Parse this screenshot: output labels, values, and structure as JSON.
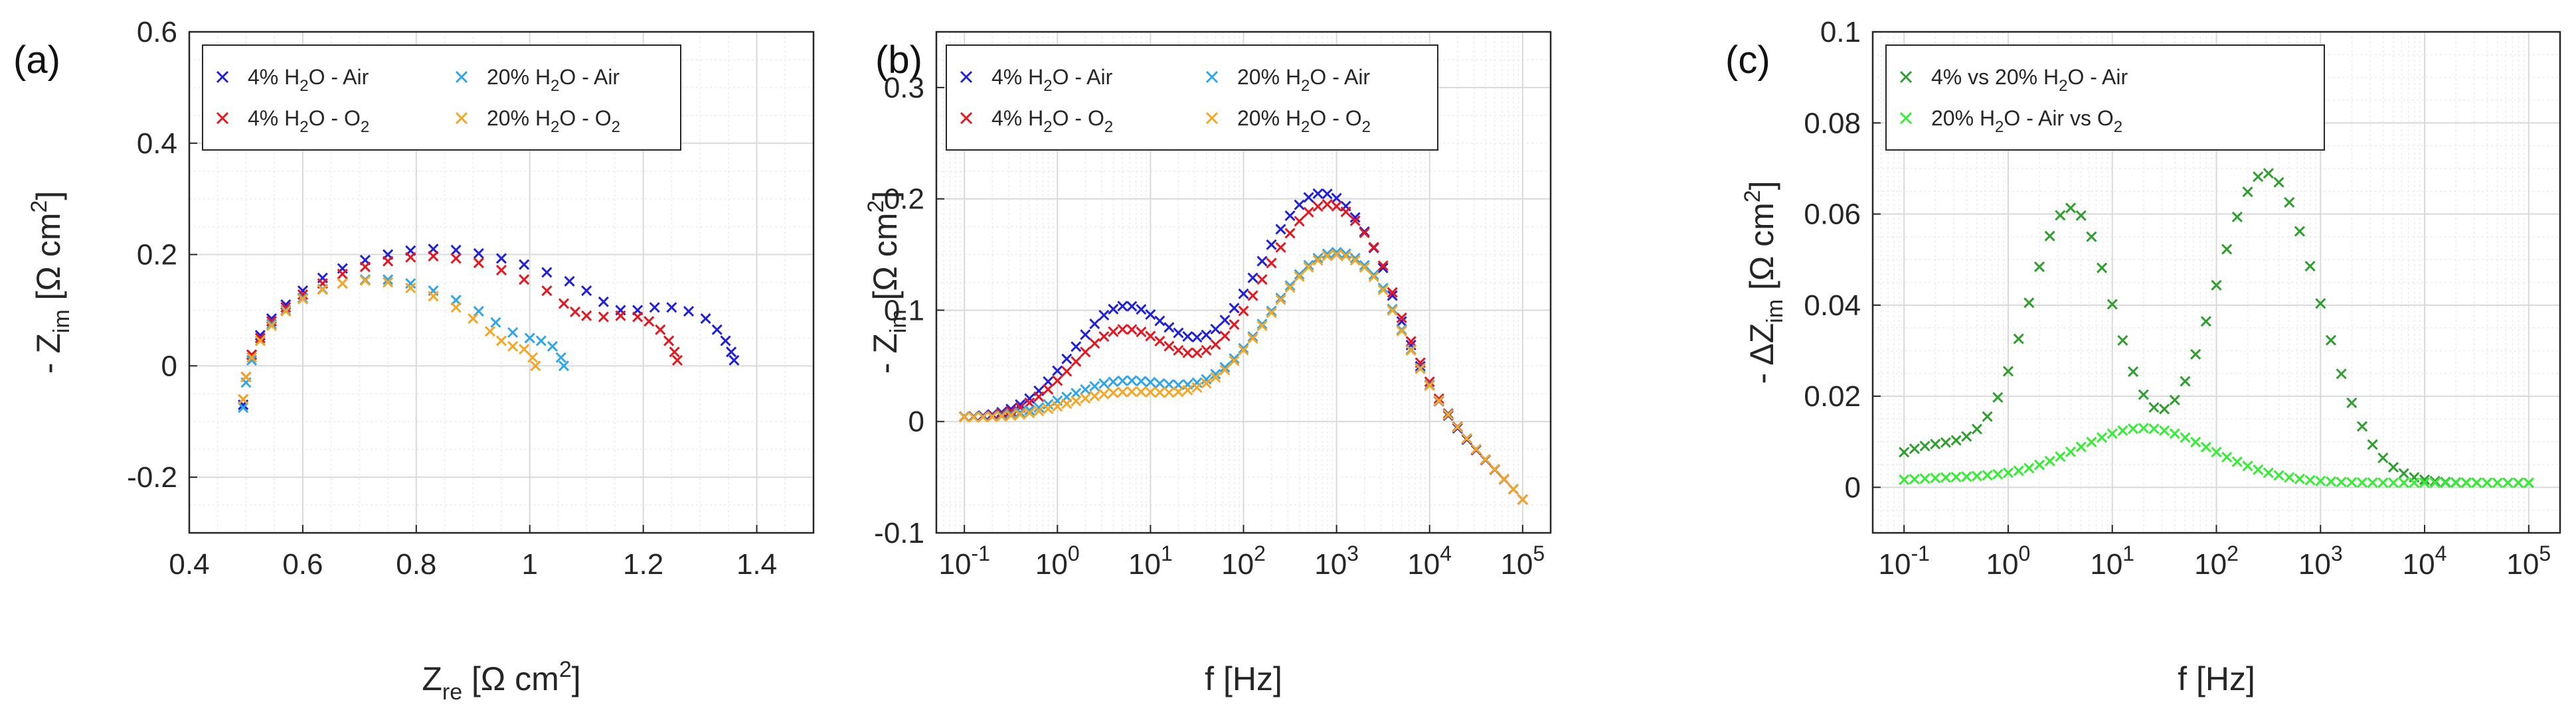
{
  "colors": {
    "blue": "#1f1fdc",
    "red": "#e8141e",
    "light_blue": "#2ea6e8",
    "orange": "#f5a623",
    "dark_green": "#2e9e2e",
    "bright_green": "#33ee33",
    "grid": "#d9d9d9",
    "axis": "#262626"
  },
  "chart_data": [
    {
      "id": "a",
      "panel_label": "(a)",
      "type": "scatter",
      "marker": "x",
      "xscale": "linear",
      "xlim": [
        0.4,
        1.5
      ],
      "ylim": [
        -0.3,
        0.6
      ],
      "xticks": [
        0.4,
        0.6,
        0.8,
        1.0,
        1.2,
        1.4
      ],
      "xtick_labels": [
        "0.4",
        "0.6",
        "0.8",
        "1",
        "1.2",
        "1.4"
      ],
      "yticks": [
        -0.2,
        0,
        0.2,
        0.4,
        0.6
      ],
      "ytick_labels": [
        "-0.2",
        "0",
        "0.2",
        "0.4",
        "0.6"
      ],
      "xlabel": {
        "base": "Z",
        "sub": "re",
        "unit": " [Ω cm",
        "sup": "2",
        "close": "]"
      },
      "ylabel": {
        "prefix": "- Z",
        "sub": "im",
        "unit": " [Ω cm",
        "sup": "2",
        "close": "]"
      },
      "legend_position": "top-left",
      "legend_columns": 2,
      "series": [
        {
          "name": "4% H2O - Air",
          "color": "blue",
          "points": [
            [
              0.495,
              -0.07
            ],
            [
              0.5,
              -0.02
            ],
            [
              0.51,
              0.02
            ],
            [
              0.525,
              0.055
            ],
            [
              0.545,
              0.085
            ],
            [
              0.57,
              0.11
            ],
            [
              0.6,
              0.135
            ],
            [
              0.635,
              0.158
            ],
            [
              0.67,
              0.175
            ],
            [
              0.71,
              0.19
            ],
            [
              0.75,
              0.2
            ],
            [
              0.79,
              0.207
            ],
            [
              0.83,
              0.21
            ],
            [
              0.87,
              0.208
            ],
            [
              0.91,
              0.202
            ],
            [
              0.95,
              0.193
            ],
            [
              0.99,
              0.182
            ],
            [
              1.03,
              0.168
            ],
            [
              1.07,
              0.152
            ],
            [
              1.1,
              0.135
            ],
            [
              1.13,
              0.115
            ],
            [
              1.16,
              0.1
            ],
            [
              1.19,
              0.1
            ],
            [
              1.22,
              0.105
            ],
            [
              1.25,
              0.105
            ],
            [
              1.28,
              0.098
            ],
            [
              1.31,
              0.085
            ],
            [
              1.33,
              0.065
            ],
            [
              1.345,
              0.045
            ],
            [
              1.355,
              0.025
            ],
            [
              1.36,
              0.01
            ]
          ]
        },
        {
          "name": "4% H2O - O2",
          "color": "red",
          "points": [
            [
              0.495,
              -0.06
            ],
            [
              0.5,
              -0.02
            ],
            [
              0.51,
              0.02
            ],
            [
              0.525,
              0.05
            ],
            [
              0.545,
              0.08
            ],
            [
              0.57,
              0.105
            ],
            [
              0.6,
              0.128
            ],
            [
              0.635,
              0.148
            ],
            [
              0.67,
              0.165
            ],
            [
              0.71,
              0.178
            ],
            [
              0.75,
              0.188
            ],
            [
              0.79,
              0.195
            ],
            [
              0.83,
              0.197
            ],
            [
              0.87,
              0.193
            ],
            [
              0.91,
              0.185
            ],
            [
              0.95,
              0.172
            ],
            [
              0.99,
              0.155
            ],
            [
              1.03,
              0.135
            ],
            [
              1.06,
              0.112
            ],
            [
              1.08,
              0.097
            ],
            [
              1.1,
              0.09
            ],
            [
              1.13,
              0.088
            ],
            [
              1.16,
              0.09
            ],
            [
              1.19,
              0.088
            ],
            [
              1.21,
              0.08
            ],
            [
              1.23,
              0.065
            ],
            [
              1.245,
              0.045
            ],
            [
              1.255,
              0.025
            ],
            [
              1.26,
              0.01
            ]
          ]
        },
        {
          "name": "20% H2O - Air",
          "color": "light_blue",
          "points": [
            [
              0.495,
              -0.075
            ],
            [
              0.5,
              -0.03
            ],
            [
              0.51,
              0.01
            ],
            [
              0.525,
              0.045
            ],
            [
              0.545,
              0.075
            ],
            [
              0.57,
              0.1
            ],
            [
              0.6,
              0.122
            ],
            [
              0.635,
              0.138
            ],
            [
              0.67,
              0.148
            ],
            [
              0.71,
              0.155
            ],
            [
              0.75,
              0.155
            ],
            [
              0.79,
              0.148
            ],
            [
              0.83,
              0.135
            ],
            [
              0.87,
              0.118
            ],
            [
              0.91,
              0.098
            ],
            [
              0.94,
              0.078
            ],
            [
              0.97,
              0.06
            ],
            [
              1.0,
              0.05
            ],
            [
              1.02,
              0.045
            ],
            [
              1.04,
              0.035
            ],
            [
              1.055,
              0.015
            ],
            [
              1.06,
              0.0
            ]
          ]
        },
        {
          "name": "20% H2O - O2",
          "color": "orange",
          "points": [
            [
              0.495,
              -0.06
            ],
            [
              0.5,
              -0.02
            ],
            [
              0.51,
              0.015
            ],
            [
              0.525,
              0.045
            ],
            [
              0.545,
              0.072
            ],
            [
              0.57,
              0.098
            ],
            [
              0.6,
              0.12
            ],
            [
              0.635,
              0.137
            ],
            [
              0.67,
              0.148
            ],
            [
              0.71,
              0.153
            ],
            [
              0.75,
              0.15
            ],
            [
              0.79,
              0.14
            ],
            [
              0.83,
              0.125
            ],
            [
              0.87,
              0.105
            ],
            [
              0.9,
              0.085
            ],
            [
              0.93,
              0.062
            ],
            [
              0.95,
              0.045
            ],
            [
              0.97,
              0.035
            ],
            [
              0.99,
              0.03
            ],
            [
              1.005,
              0.015
            ],
            [
              1.01,
              0.0
            ]
          ]
        }
      ]
    },
    {
      "id": "b",
      "panel_label": "(b)",
      "type": "scatter",
      "marker": "x",
      "xscale": "log",
      "xlim": [
        0.05,
        200000
      ],
      "ylim": [
        -0.1,
        0.35
      ],
      "xticks": [
        0.1,
        1,
        10,
        100,
        1000,
        10000,
        100000
      ],
      "xtick_labels": [
        [
          "10",
          "-1"
        ],
        [
          "10",
          "0"
        ],
        [
          "10",
          "1"
        ],
        [
          "10",
          "2"
        ],
        [
          "10",
          "3"
        ],
        [
          "10",
          "4"
        ],
        [
          "10",
          "5"
        ]
      ],
      "yticks": [
        -0.1,
        0,
        0.1,
        0.2,
        0.3
      ],
      "ytick_labels": [
        "-0.1",
        "0",
        "0.1",
        "0.2",
        "0.3"
      ],
      "xlabel": {
        "text": "f [Hz]"
      },
      "ylabel": {
        "prefix": "- Z",
        "sub": "im",
        "unit": " [Ω cm",
        "sup": "2",
        "close": "]"
      },
      "legend_position": "top-left",
      "legend_columns": 2,
      "series": [
        {
          "name": "4% H2O - Air",
          "color": "blue",
          "peaks": [
            {
              "c": 0.003,
              "a": 0.008,
              "w": 1.2
            },
            {
              "c": 5,
              "a": 0.1,
              "w": 0.55
            },
            {
              "c": 700,
              "a": 0.205,
              "w": 0.75
            }
          ]
        },
        {
          "name": "4% H2O - O2",
          "color": "red",
          "peaks": [
            {
              "c": 0.003,
              "a": 0.008,
              "w": 1.2
            },
            {
              "c": 5,
              "a": 0.08,
              "w": 0.55
            },
            {
              "c": 800,
              "a": 0.195,
              "w": 0.75
            }
          ]
        },
        {
          "name": "20% H2O - Air",
          "color": "light_blue",
          "peaks": [
            {
              "c": 0.003,
              "a": 0.008,
              "w": 1.2
            },
            {
              "c": 5,
              "a": 0.035,
              "w": 0.6
            },
            {
              "c": 1000,
              "a": 0.152,
              "w": 0.75
            }
          ]
        },
        {
          "name": "20% H2O - O2",
          "color": "orange",
          "peaks": [
            {
              "c": 0.003,
              "a": 0.008,
              "w": 1.2
            },
            {
              "c": 5,
              "a": 0.025,
              "w": 0.6
            },
            {
              "c": 1000,
              "a": 0.15,
              "w": 0.75
            }
          ]
        }
      ],
      "tail": {
        "from_hz": 3000,
        "to_hz": 100000,
        "end_value": -0.07
      }
    },
    {
      "id": "c",
      "panel_label": "(c)",
      "type": "scatter",
      "marker": "x",
      "xscale": "log",
      "xlim": [
        0.05,
        200000
      ],
      "ylim": [
        -0.01,
        0.1
      ],
      "xticks": [
        0.1,
        1,
        10,
        100,
        1000,
        10000,
        100000
      ],
      "xtick_labels": [
        [
          "10",
          "-1"
        ],
        [
          "10",
          "0"
        ],
        [
          "10",
          "1"
        ],
        [
          "10",
          "2"
        ],
        [
          "10",
          "3"
        ],
        [
          "10",
          "4"
        ],
        [
          "10",
          "5"
        ]
      ],
      "yticks": [
        0,
        0.02,
        0.04,
        0.06,
        0.08,
        0.1
      ],
      "ytick_labels": [
        "0",
        "0.02",
        "0.04",
        "0.06",
        "0.08",
        "0.1"
      ],
      "xlabel": {
        "text": "f [Hz]"
      },
      "ylabel": {
        "prefix": "- ΔZ",
        "sub": "im",
        "unit": " [Ω cm",
        "sup": "2",
        "close": "]"
      },
      "legend_position": "top-left",
      "legend_columns": 1,
      "series": [
        {
          "name": "4% vs 20% H2O - Air",
          "color": "dark_green",
          "peaks": [
            {
              "c": 4,
              "a": 0.06,
              "w": 0.42
            },
            {
              "c": 300,
              "a": 0.068,
              "w": 0.5
            },
            {
              "c": 0.2,
              "a": 0.008,
              "w": 0.5
            }
          ],
          "base": 0.001
        },
        {
          "name": "20% H2O - Air vs O2",
          "color": "bright_green",
          "peaks": [
            {
              "c": 20,
              "a": 0.012,
              "w": 0.65
            },
            {
              "c": 0.3,
              "a": 0.001,
              "w": 0.5
            }
          ],
          "base": 0.001
        }
      ]
    }
  ],
  "legends": {
    "a": [
      {
        "pre": "4% H",
        "sub": "2",
        "post": "O - Air",
        "color": "blue"
      },
      {
        "pre": "20% H",
        "sub": "2",
        "post": "O - Air",
        "color": "light_blue"
      },
      {
        "pre": "4% H",
        "sub": "2",
        "post": "O - O",
        "sub2": "2",
        "color": "red"
      },
      {
        "pre": "20% H",
        "sub": "2",
        "post": "O - O",
        "sub2": "2",
        "color": "orange"
      }
    ],
    "b": [
      {
        "pre": "4% H",
        "sub": "2",
        "post": "O - Air",
        "color": "blue"
      },
      {
        "pre": "20% H",
        "sub": "2",
        "post": "O - Air",
        "color": "light_blue"
      },
      {
        "pre": "4% H",
        "sub": "2",
        "post": "O - O",
        "sub2": "2",
        "color": "red"
      },
      {
        "pre": "20% H",
        "sub": "2",
        "post": "O - O",
        "sub2": "2",
        "color": "orange"
      }
    ],
    "c": [
      {
        "pre": "4% vs 20% H",
        "sub": "2",
        "post": "O - Air",
        "color": "dark_green"
      },
      {
        "pre": "20% H",
        "sub": "2",
        "post": "O - Air vs O",
        "sub2": "2",
        "color": "bright_green"
      }
    ]
  }
}
